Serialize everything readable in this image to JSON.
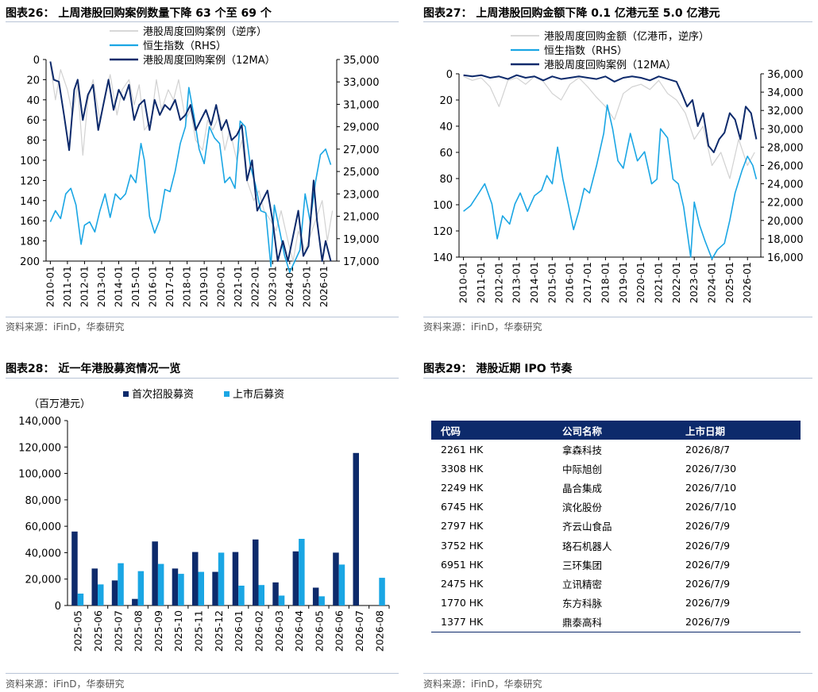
{
  "panels": {
    "p26": {
      "title": "图表26：  上周港股回购案例数量下降 63 个至 69 个",
      "source": "资料来源：iFinD，华泰研究"
    },
    "p27": {
      "title": "图表27：  上周港股回购金额下降 0.1 亿港元至 5.0 亿港元",
      "source": "资料来源：iFinD，华泰研究"
    },
    "p28": {
      "title": "图表28：  近一年港股募资情况一览",
      "source": "资料来源：iFinD，华泰研究"
    },
    "p29": {
      "title": "图表29：  港股近期 IPO 节奏",
      "source": "资料来源：iFinD，华泰研究"
    }
  },
  "colors": {
    "navy": "#0d2a6b",
    "cyan": "#1aa6e4",
    "gray": "#d2d2d2",
    "rule": "#b8c4d6"
  },
  "chart_data": [
    {
      "type": "line",
      "id": "c26",
      "x_ticks": [
        "2010-01",
        "2011-01",
        "2012-01",
        "2013-01",
        "2014-01",
        "2015-01",
        "2016-01",
        "2017-01",
        "2018-01",
        "2019-01",
        "2020-01",
        "2021-01",
        "2022-01",
        "2023-01",
        "2024-01",
        "2025-01",
        "2026-01"
      ],
      "ylim_left": [
        200,
        0
      ],
      "yticks_left": [
        "0",
        "20",
        "40",
        "60",
        "80",
        "100",
        "120",
        "140",
        "160",
        "180",
        "200"
      ],
      "ylim_right": [
        17000,
        35000
      ],
      "yticks_right": [
        "35,000",
        "33,000",
        "31,000",
        "29,000",
        "27,000",
        "25,000",
        "23,000",
        "21,000",
        "19,000",
        "17,000"
      ],
      "legend": [
        "港股周度回购案例（逆序）",
        "恒生指数（RHS）",
        "港股周度回购案例（12MA）"
      ],
      "series": [
        {
          "name": "港股周度回购案例（逆序）",
          "axis": "left",
          "style": "gray",
          "x": [
            2010.0,
            2010.3,
            2010.6,
            2011.0,
            2011.3,
            2011.6,
            2011.9,
            2012.2,
            2012.5,
            2012.9,
            2013.2,
            2013.5,
            2013.9,
            2014.2,
            2014.6,
            2014.9,
            2015.2,
            2015.5,
            2015.9,
            2016.2,
            2016.5,
            2016.9,
            2017.2,
            2017.5,
            2017.9,
            2018.2,
            2018.5,
            2018.9,
            2019.2,
            2019.5,
            2019.9,
            2020.2,
            2020.5,
            2020.9,
            2021.2,
            2021.5,
            2021.9,
            2022.2,
            2022.5,
            2022.9,
            2023.2,
            2023.5,
            2023.9,
            2024.2,
            2024.5,
            2024.9,
            2025.2,
            2025.5,
            2025.9,
            2026.2,
            2026.5
          ],
          "y": [
            5,
            40,
            10,
            30,
            55,
            25,
            95,
            40,
            20,
            60,
            35,
            15,
            55,
            30,
            20,
            45,
            25,
            70,
            60,
            20,
            50,
            30,
            40,
            20,
            60,
            50,
            80,
            90,
            60,
            70,
            55,
            90,
            70,
            100,
            80,
            120,
            140,
            130,
            150,
            160,
            170,
            150,
            180,
            200,
            170,
            190,
            175,
            160,
            140,
            180,
            150
          ]
        },
        {
          "name": "恒生指数（RHS）",
          "axis": "right",
          "style": "cyan",
          "x": [
            2010.0,
            2010.3,
            2010.6,
            2010.9,
            2011.2,
            2011.5,
            2011.8,
            2012.0,
            2012.3,
            2012.6,
            2012.9,
            2013.2,
            2013.5,
            2013.8,
            2014.1,
            2014.4,
            2014.7,
            2015.0,
            2015.3,
            2015.5,
            2015.8,
            2016.1,
            2016.4,
            2016.7,
            2017.0,
            2017.3,
            2017.6,
            2017.9,
            2018.1,
            2018.4,
            2018.7,
            2019.0,
            2019.3,
            2019.6,
            2019.9,
            2020.2,
            2020.5,
            2020.8,
            2021.1,
            2021.4,
            2021.7,
            2022.0,
            2022.3,
            2022.6,
            2022.9,
            2023.1,
            2023.4,
            2023.7,
            2024.0,
            2024.3,
            2024.6,
            2024.9,
            2025.2,
            2025.5,
            2025.8,
            2026.1,
            2026.4
          ],
          "y": [
            20500,
            21500,
            20800,
            23000,
            23500,
            22000,
            18500,
            20200,
            20500,
            19600,
            21500,
            23000,
            20900,
            23000,
            22500,
            23000,
            24700,
            24000,
            27500,
            26000,
            21000,
            19500,
            20700,
            23400,
            23200,
            25000,
            27500,
            29000,
            32500,
            30000,
            27000,
            25700,
            29000,
            28000,
            27500,
            24000,
            24500,
            23500,
            29500,
            29000,
            25500,
            23800,
            21500,
            21300,
            16500,
            22000,
            19800,
            17500,
            16000,
            17000,
            18000,
            23000,
            20500,
            24000,
            26500,
            27000,
            25600
          ]
        },
        {
          "name": "港股周度回购案例（12MA）",
          "axis": "left",
          "style": "navy",
          "x": [
            2010.0,
            2010.2,
            2010.5,
            2010.8,
            2011.1,
            2011.4,
            2011.6,
            2011.9,
            2012.2,
            2012.5,
            2012.8,
            2013.1,
            2013.4,
            2013.7,
            2014.0,
            2014.3,
            2014.6,
            2014.9,
            2015.2,
            2015.5,
            2015.8,
            2016.1,
            2016.4,
            2016.7,
            2017.0,
            2017.3,
            2017.6,
            2017.9,
            2018.2,
            2018.5,
            2018.8,
            2019.1,
            2019.4,
            2019.7,
            2020.0,
            2020.3,
            2020.6,
            2020.9,
            2021.2,
            2021.5,
            2021.8,
            2022.1,
            2022.4,
            2022.7,
            2023.0,
            2023.3,
            2023.6,
            2023.9,
            2024.2,
            2024.5,
            2024.8,
            2025.1,
            2025.4,
            2025.6,
            2025.9,
            2026.1,
            2026.4
          ],
          "y": [
            2,
            20,
            22,
            55,
            90,
            30,
            20,
            60,
            35,
            25,
            70,
            45,
            20,
            50,
            30,
            40,
            25,
            60,
            45,
            40,
            70,
            40,
            55,
            45,
            50,
            40,
            60,
            55,
            45,
            70,
            60,
            50,
            65,
            45,
            70,
            60,
            80,
            75,
            65,
            120,
            100,
            150,
            140,
            130,
            160,
            200,
            180,
            200,
            175,
            150,
            195,
            185,
            120,
            160,
            200,
            180,
            200
          ]
        }
      ]
    },
    {
      "type": "line",
      "id": "c27",
      "x_ticks": [
        "2010-01",
        "2011-01",
        "2012-01",
        "2013-01",
        "2014-01",
        "2015-01",
        "2016-01",
        "2017-01",
        "2018-01",
        "2019-01",
        "2020-01",
        "2021-01",
        "2022-01",
        "2023-01",
        "2024-01",
        "2025-01",
        "2026-01"
      ],
      "ylim_left": [
        140,
        0
      ],
      "yticks_left": [
        "0",
        "20",
        "40",
        "60",
        "80",
        "100",
        "120",
        "140"
      ],
      "ylim_right": [
        16000,
        36000
      ],
      "yticks_right": [
        "36,000",
        "34,000",
        "32,000",
        "30,000",
        "28,000",
        "26,000",
        "24,000",
        "22,000",
        "20,000",
        "18,000",
        "16,000"
      ],
      "legend": [
        "港股周度回购金额（亿港币，逆序）",
        "恒生指数（RHS）",
        "港股周度回购案例（12MA）"
      ],
      "series": [
        {
          "name": "港股周度回购金额（亿港币，逆序）",
          "axis": "left",
          "style": "gray",
          "x": [
            2010.0,
            2010.5,
            2011.0,
            2011.5,
            2012.0,
            2012.5,
            2013.0,
            2013.5,
            2014.0,
            2014.5,
            2015.0,
            2015.5,
            2016.0,
            2016.5,
            2017.0,
            2017.5,
            2018.0,
            2018.5,
            2019.0,
            2019.5,
            2020.0,
            2020.5,
            2021.0,
            2021.5,
            2022.0,
            2022.5,
            2023.0,
            2023.5,
            2024.0,
            2024.5,
            2025.0,
            2025.5,
            2026.0,
            2026.4
          ],
          "y": [
            2,
            5,
            3,
            10,
            25,
            5,
            3,
            8,
            2,
            6,
            15,
            20,
            8,
            3,
            10,
            18,
            25,
            35,
            15,
            10,
            8,
            12,
            5,
            15,
            20,
            30,
            50,
            40,
            70,
            60,
            80,
            50,
            70,
            60
          ]
        },
        {
          "name": "恒生指数（RHS）",
          "axis": "right",
          "style": "cyan",
          "x": [
            2010.0,
            2010.4,
            2010.8,
            2011.2,
            2011.6,
            2011.9,
            2012.2,
            2012.6,
            2012.9,
            2013.2,
            2013.6,
            2014.0,
            2014.4,
            2014.7,
            2015.0,
            2015.3,
            2015.6,
            2015.9,
            2016.2,
            2016.5,
            2016.8,
            2017.1,
            2017.5,
            2017.9,
            2018.1,
            2018.4,
            2018.7,
            2019.0,
            2019.4,
            2019.8,
            2020.2,
            2020.6,
            2020.9,
            2021.1,
            2021.5,
            2021.8,
            2022.1,
            2022.4,
            2022.8,
            2023.0,
            2023.3,
            2023.6,
            2024.0,
            2024.3,
            2024.7,
            2025.0,
            2025.3,
            2025.7,
            2026.0,
            2026.3,
            2026.5
          ],
          "y": [
            21000,
            21600,
            22800,
            24000,
            21800,
            18000,
            20500,
            19600,
            21800,
            23000,
            21000,
            22700,
            23300,
            24900,
            24000,
            28000,
            24500,
            21800,
            19000,
            21000,
            23500,
            23000,
            26000,
            29500,
            32600,
            30000,
            26500,
            25700,
            29500,
            26500,
            27500,
            24000,
            24500,
            30000,
            29000,
            24500,
            24000,
            21500,
            16000,
            22000,
            19500,
            17800,
            15800,
            16800,
            17500,
            20000,
            23000,
            25500,
            27000,
            26000,
            24500
          ]
        },
        {
          "name": "港股周度回购案例（12MA）",
          "axis": "left",
          "style": "navy",
          "x": [
            2010.0,
            2010.5,
            2011.0,
            2011.5,
            2012.0,
            2012.5,
            2013.0,
            2013.5,
            2014.0,
            2014.5,
            2015.0,
            2015.5,
            2016.0,
            2016.5,
            2017.0,
            2017.5,
            2018.0,
            2018.5,
            2019.0,
            2019.5,
            2020.0,
            2020.5,
            2021.0,
            2021.5,
            2022.0,
            2022.3,
            2022.6,
            2022.9,
            2023.2,
            2023.5,
            2023.8,
            2024.1,
            2024.4,
            2024.7,
            2025.0,
            2025.3,
            2025.6,
            2025.9,
            2026.2,
            2026.5
          ],
          "y": [
            1,
            2,
            1,
            3,
            2,
            4,
            1,
            3,
            2,
            5,
            2,
            4,
            3,
            2,
            3,
            4,
            2,
            6,
            3,
            2,
            3,
            5,
            2,
            4,
            6,
            15,
            25,
            20,
            40,
            30,
            55,
            60,
            50,
            45,
            30,
            35,
            50,
            25,
            30,
            50
          ]
        }
      ]
    },
    {
      "type": "bar",
      "id": "c28",
      "unit_label": "（百万港元）",
      "categories": [
        "2025-05",
        "2025-06",
        "2025-07",
        "2025-08",
        "2025-09",
        "2025-10",
        "2025-11",
        "2025-12",
        "2026-01",
        "2026-02",
        "2026-03",
        "2026-04",
        "2026-05",
        "2026-06",
        "2026-07",
        "2026-08"
      ],
      "ylim": [
        0,
        140000
      ],
      "yticks": [
        "0",
        "20,000",
        "40,000",
        "60,000",
        "80,000",
        "100,000",
        "120,000",
        "140,000"
      ],
      "series": [
        {
          "name": "首次招股募资",
          "color": "#0d2a6b",
          "values": [
            56000,
            28000,
            19000,
            5000,
            48500,
            28000,
            40500,
            25500,
            40500,
            50000,
            17500,
            41000,
            13500,
            40000,
            115500,
            0
          ]
        },
        {
          "name": "上市后募资",
          "color": "#1aa6e4",
          "values": [
            9000,
            16000,
            32000,
            26000,
            31500,
            24000,
            25500,
            40000,
            15000,
            15500,
            7500,
            50500,
            7000,
            31000,
            0,
            21000
          ]
        }
      ]
    },
    {
      "type": "table",
      "id": "t29",
      "headers": [
        "代码",
        "公司名称",
        "上市日期"
      ],
      "rows": [
        [
          "2261 HK",
          "拿森科技",
          "2026/8/7"
        ],
        [
          "3308 HK",
          "中际旭创",
          "2026/7/30"
        ],
        [
          "2249 HK",
          "晶合集成",
          "2026/7/10"
        ],
        [
          "6745 HK",
          "滨化股份",
          "2026/7/10"
        ],
        [
          "2797 HK",
          "齐云山食品",
          "2026/7/9"
        ],
        [
          "3752 HK",
          "珞石机器人",
          "2026/7/9"
        ],
        [
          "6951 HK",
          "三环集团",
          "2026/7/9"
        ],
        [
          "2475 HK",
          "立讯精密",
          "2026/7/9"
        ],
        [
          "1770 HK",
          "东方科脉",
          "2026/7/9"
        ],
        [
          "1377 HK",
          "鼎泰高科",
          "2026/7/9"
        ]
      ]
    }
  ]
}
